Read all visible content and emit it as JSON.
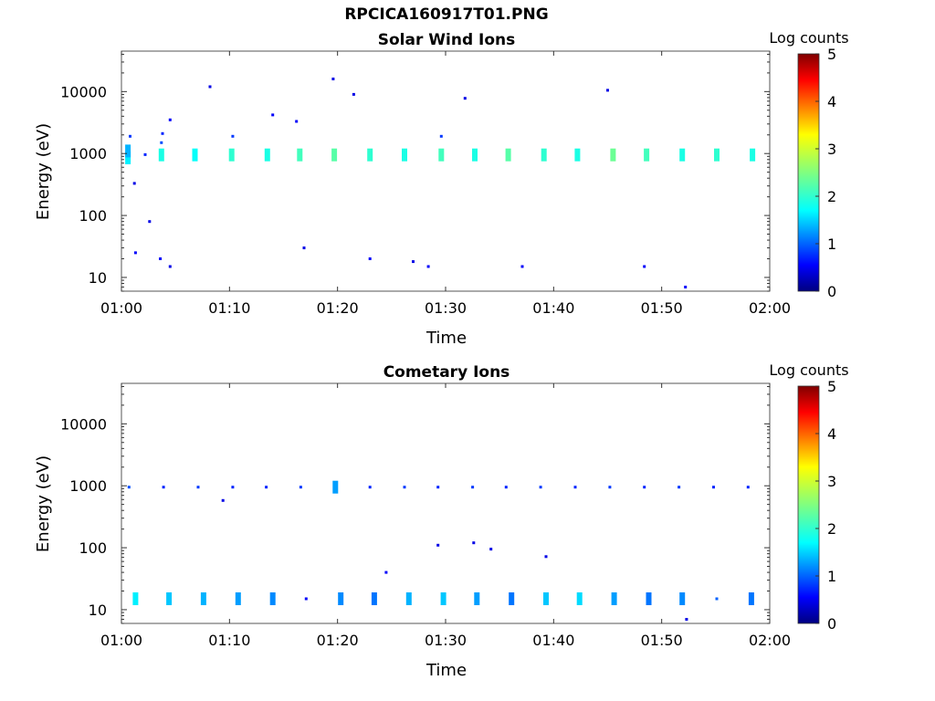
{
  "figure": {
    "title": "RPCICA160917T01.PNG"
  },
  "chart_data": [
    {
      "type": "heatmap",
      "title": "Solar Wind Ions",
      "xlabel": "Time",
      "ylabel": "Energy (eV)",
      "x_ticks": [
        "01:00",
        "01:10",
        "01:20",
        "01:30",
        "01:40",
        "01:50",
        "02:00"
      ],
      "y_ticks": [
        "10",
        "100",
        "1000",
        "10000"
      ],
      "xlim": [
        "01:00",
        "02:00"
      ],
      "ylim": [
        6,
        45000
      ],
      "y_scale": "log",
      "colorbar": {
        "label": "Log counts",
        "ticks": [
          "0",
          "1",
          "2",
          "3",
          "4",
          "5"
        ],
        "range": [
          0,
          5
        ],
        "colormap": "jet"
      },
      "grid": false,
      "cells": [
        {
          "t": 0.6,
          "e": 850,
          "v": 1.8
        },
        {
          "t": 0.6,
          "e": 1100,
          "v": 1.5
        },
        {
          "t": 0.8,
          "e": 1900,
          "v": 0.9
        },
        {
          "t": 1.2,
          "e": 330,
          "v": 0.5
        },
        {
          "t": 1.3,
          "e": 25,
          "v": 0.6
        },
        {
          "t": 2.2,
          "e": 960,
          "v": 0.8
        },
        {
          "t": 2.6,
          "e": 80,
          "v": 0.5
        },
        {
          "t": 3.7,
          "e": 950,
          "v": 2.0
        },
        {
          "t": 3.7,
          "e": 1500,
          "v": 1.0
        },
        {
          "t": 3.8,
          "e": 2100,
          "v": 0.8
        },
        {
          "t": 3.6,
          "e": 20,
          "v": 0.6
        },
        {
          "t": 4.5,
          "e": 3500,
          "v": 0.6
        },
        {
          "t": 4.5,
          "e": 15,
          "v": 0.5
        },
        {
          "t": 6.8,
          "e": 950,
          "v": 1.9
        },
        {
          "t": 8.2,
          "e": 12000,
          "v": 0.5
        },
        {
          "t": 10.2,
          "e": 950,
          "v": 2.1
        },
        {
          "t": 10.3,
          "e": 1900,
          "v": 0.9
        },
        {
          "t": 13.5,
          "e": 950,
          "v": 2.0
        },
        {
          "t": 14.0,
          "e": 4200,
          "v": 0.6
        },
        {
          "t": 16.5,
          "e": 950,
          "v": 2.2
        },
        {
          "t": 16.2,
          "e": 3300,
          "v": 0.6
        },
        {
          "t": 16.9,
          "e": 30,
          "v": 0.5
        },
        {
          "t": 19.7,
          "e": 950,
          "v": 2.3
        },
        {
          "t": 19.6,
          "e": 16000,
          "v": 0.5
        },
        {
          "t": 21.5,
          "e": 9000,
          "v": 0.5
        },
        {
          "t": 23.0,
          "e": 950,
          "v": 2.1
        },
        {
          "t": 23.0,
          "e": 20,
          "v": 0.6
        },
        {
          "t": 26.2,
          "e": 950,
          "v": 2.0
        },
        {
          "t": 27.0,
          "e": 18,
          "v": 0.5
        },
        {
          "t": 28.4,
          "e": 15,
          "v": 0.6
        },
        {
          "t": 29.6,
          "e": 950,
          "v": 2.2
        },
        {
          "t": 29.6,
          "e": 1900,
          "v": 0.9
        },
        {
          "t": 32.7,
          "e": 950,
          "v": 2.0
        },
        {
          "t": 31.8,
          "e": 7800,
          "v": 0.5
        },
        {
          "t": 35.8,
          "e": 950,
          "v": 2.3
        },
        {
          "t": 37.1,
          "e": 15,
          "v": 0.6
        },
        {
          "t": 39.1,
          "e": 950,
          "v": 2.1
        },
        {
          "t": 42.2,
          "e": 950,
          "v": 2.0
        },
        {
          "t": 45.5,
          "e": 950,
          "v": 2.4
        },
        {
          "t": 45.0,
          "e": 10500,
          "v": 0.5
        },
        {
          "t": 48.6,
          "e": 950,
          "v": 2.2
        },
        {
          "t": 48.4,
          "e": 15,
          "v": 0.6
        },
        {
          "t": 51.9,
          "e": 950,
          "v": 2.0
        },
        {
          "t": 52.2,
          "e": 7,
          "v": 0.6
        },
        {
          "t": 55.1,
          "e": 950,
          "v": 2.1
        },
        {
          "t": 58.4,
          "e": 950,
          "v": 2.0
        }
      ]
    },
    {
      "type": "heatmap",
      "title": "Cometary Ions",
      "xlabel": "Time",
      "ylabel": "Energy (eV)",
      "x_ticks": [
        "01:00",
        "01:10",
        "01:20",
        "01:30",
        "01:40",
        "01:50",
        "02:00"
      ],
      "y_ticks": [
        "10",
        "100",
        "1000",
        "10000"
      ],
      "xlim": [
        "01:00",
        "02:00"
      ],
      "ylim": [
        6,
        45000
      ],
      "y_scale": "log",
      "colorbar": {
        "label": "Log counts",
        "ticks": [
          "0",
          "1",
          "2",
          "3",
          "4",
          "5"
        ],
        "range": [
          0,
          5
        ],
        "colormap": "jet"
      },
      "grid": false,
      "cells": [
        {
          "t": 0.7,
          "e": 950,
          "v": 1.0
        },
        {
          "t": 3.9,
          "e": 950,
          "v": 0.8
        },
        {
          "t": 7.1,
          "e": 950,
          "v": 0.9
        },
        {
          "t": 9.4,
          "e": 580,
          "v": 0.5
        },
        {
          "t": 10.3,
          "e": 950,
          "v": 0.8
        },
        {
          "t": 13.4,
          "e": 950,
          "v": 0.8
        },
        {
          "t": 16.6,
          "e": 950,
          "v": 0.9
        },
        {
          "t": 19.8,
          "e": 950,
          "v": 1.4
        },
        {
          "t": 23.0,
          "e": 950,
          "v": 0.8
        },
        {
          "t": 26.2,
          "e": 950,
          "v": 0.9
        },
        {
          "t": 29.3,
          "e": 950,
          "v": 0.8
        },
        {
          "t": 32.5,
          "e": 950,
          "v": 0.9
        },
        {
          "t": 35.6,
          "e": 950,
          "v": 0.8
        },
        {
          "t": 38.8,
          "e": 950,
          "v": 0.9
        },
        {
          "t": 42.0,
          "e": 950,
          "v": 0.8
        },
        {
          "t": 45.2,
          "e": 950,
          "v": 0.9
        },
        {
          "t": 48.4,
          "e": 950,
          "v": 0.8
        },
        {
          "t": 51.6,
          "e": 950,
          "v": 0.9
        },
        {
          "t": 54.8,
          "e": 950,
          "v": 0.8
        },
        {
          "t": 58.0,
          "e": 950,
          "v": 0.8
        },
        {
          "t": 29.3,
          "e": 110,
          "v": 0.5
        },
        {
          "t": 32.6,
          "e": 120,
          "v": 0.5
        },
        {
          "t": 34.2,
          "e": 95,
          "v": 0.5
        },
        {
          "t": 39.3,
          "e": 72,
          "v": 0.5
        },
        {
          "t": 24.5,
          "e": 40,
          "v": 0.6
        },
        {
          "t": 1.3,
          "e": 15,
          "v": 1.8
        },
        {
          "t": 4.4,
          "e": 15,
          "v": 1.6
        },
        {
          "t": 7.6,
          "e": 15,
          "v": 1.5
        },
        {
          "t": 10.8,
          "e": 15,
          "v": 1.4
        },
        {
          "t": 14.0,
          "e": 15,
          "v": 1.3
        },
        {
          "t": 17.1,
          "e": 15,
          "v": 0.6
        },
        {
          "t": 20.3,
          "e": 15,
          "v": 1.3
        },
        {
          "t": 23.4,
          "e": 15,
          "v": 1.2
        },
        {
          "t": 26.6,
          "e": 15,
          "v": 1.5
        },
        {
          "t": 29.8,
          "e": 15,
          "v": 1.6
        },
        {
          "t": 32.9,
          "e": 15,
          "v": 1.4
        },
        {
          "t": 36.1,
          "e": 15,
          "v": 1.2
        },
        {
          "t": 39.3,
          "e": 15,
          "v": 1.6
        },
        {
          "t": 42.4,
          "e": 15,
          "v": 1.7
        },
        {
          "t": 45.6,
          "e": 15,
          "v": 1.4
        },
        {
          "t": 48.8,
          "e": 15,
          "v": 1.2
        },
        {
          "t": 51.9,
          "e": 15,
          "v": 1.3
        },
        {
          "t": 55.1,
          "e": 15,
          "v": 1.1
        },
        {
          "t": 58.3,
          "e": 15,
          "v": 1.2
        },
        {
          "t": 52.3,
          "e": 7,
          "v": 0.5
        }
      ]
    }
  ]
}
